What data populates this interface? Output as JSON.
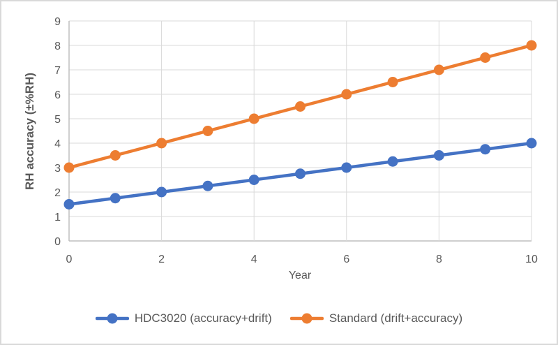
{
  "chart_data": {
    "type": "line",
    "title": "",
    "xlabel": "Year",
    "ylabel": "RH accuracy (±%RH)",
    "x": [
      0,
      1,
      2,
      3,
      4,
      5,
      6,
      7,
      8,
      9,
      10
    ],
    "series": [
      {
        "name": "HDC3020 (accuracy+drift)",
        "color": "#4472C4",
        "values": [
          1.5,
          1.75,
          2.0,
          2.25,
          2.5,
          2.75,
          3.0,
          3.25,
          3.5,
          3.75,
          4.0
        ]
      },
      {
        "name": "Standard (drift+accuracy)",
        "color": "#ED7D31",
        "values": [
          3.0,
          3.5,
          4.0,
          4.5,
          5.0,
          5.5,
          6.0,
          6.5,
          7.0,
          7.5,
          8.0
        ]
      }
    ],
    "xlim": [
      0,
      10
    ],
    "ylim": [
      0,
      9
    ],
    "x_ticks": [
      0,
      2,
      4,
      6,
      8,
      10
    ],
    "y_ticks": [
      0,
      1,
      2,
      3,
      4,
      5,
      6,
      7,
      8,
      9
    ],
    "grid": true,
    "legend_position": "bottom",
    "marker": "circle"
  },
  "colors": {
    "grid": "#D9D9D9",
    "axis": "#BFBFBF",
    "text": "#595959",
    "border": "#D9D9D9",
    "background": "#FFFFFF"
  }
}
